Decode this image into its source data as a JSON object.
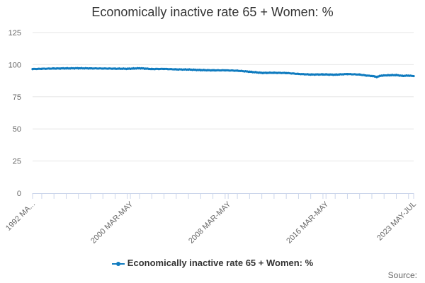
{
  "chart_data": {
    "type": "line",
    "title": "Economically inactive rate 65 + Women: %",
    "xlabel": "",
    "ylabel": "",
    "ylim": [
      0,
      125
    ],
    "yticks": [
      0,
      25,
      50,
      75,
      100,
      125
    ],
    "grid": true,
    "legend_position": "bottom",
    "x_range": [
      "1992 MAR-MAY",
      "2023 MAY-JUL"
    ],
    "xtick_labels": [
      "1992 MA...",
      "2000 MAR-MAY",
      "2008 MAR-MAY",
      "2016 MAR-MAY",
      "2023 MAY-JUL"
    ],
    "xtick_positions_years": [
      1992.25,
      2000.25,
      2008.25,
      2016.25,
      2023.42
    ],
    "series": [
      {
        "name": "Economically inactive rate 65 + Women: %",
        "color": "#0f7bbf",
        "points": [
          [
            1992.25,
            96.6
          ],
          [
            1993.0,
            96.8
          ],
          [
            1994.0,
            97.0
          ],
          [
            1995.0,
            97.1
          ],
          [
            1996.0,
            97.2
          ],
          [
            1997.0,
            97.1
          ],
          [
            1998.0,
            97.0
          ],
          [
            1999.0,
            96.9
          ],
          [
            2000.0,
            96.8
          ],
          [
            2000.5,
            97.0
          ],
          [
            2001.0,
            97.2
          ],
          [
            2001.5,
            96.9
          ],
          [
            2002.0,
            96.6
          ],
          [
            2003.0,
            96.7
          ],
          [
            2004.0,
            96.3
          ],
          [
            2005.0,
            96.2
          ],
          [
            2006.0,
            95.8
          ],
          [
            2007.0,
            95.6
          ],
          [
            2008.0,
            95.6
          ],
          [
            2009.0,
            95.3
          ],
          [
            2010.0,
            94.5
          ],
          [
            2011.0,
            93.6
          ],
          [
            2012.0,
            93.7
          ],
          [
            2013.0,
            93.5
          ],
          [
            2014.0,
            92.8
          ],
          [
            2015.0,
            92.3
          ],
          [
            2016.0,
            92.4
          ],
          [
            2017.0,
            92.2
          ],
          [
            2018.0,
            92.7
          ],
          [
            2019.0,
            92.3
          ],
          [
            2019.5,
            91.6
          ],
          [
            2020.0,
            91.2
          ],
          [
            2020.4,
            90.5
          ],
          [
            2020.8,
            91.5
          ],
          [
            2021.5,
            91.8
          ],
          [
            2022.0,
            91.9
          ],
          [
            2022.5,
            91.3
          ],
          [
            2023.0,
            91.5
          ],
          [
            2023.42,
            91.1
          ]
        ]
      }
    ]
  },
  "legend": {
    "label": "Economically inactive rate 65 + Women: %"
  },
  "credits": {
    "label": "Source:"
  }
}
